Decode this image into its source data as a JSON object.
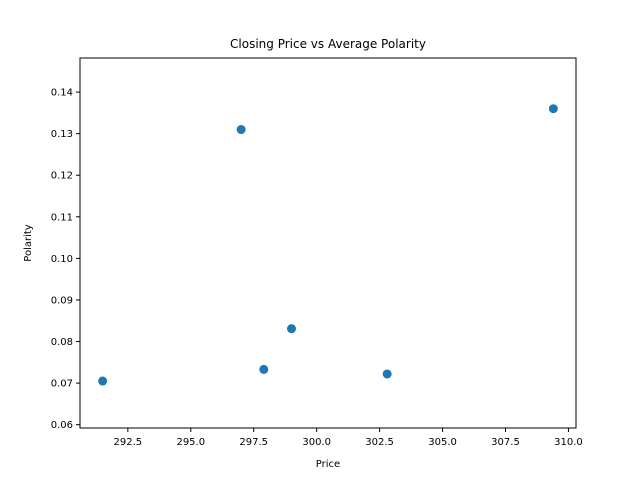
{
  "chart_data": {
    "type": "scatter",
    "title": "Closing Price vs Average Polarity",
    "xlabel": "Price",
    "ylabel": "Polarity",
    "xlim": [
      290.6,
      310.3
    ],
    "ylim": [
      0.0592,
      0.1482
    ],
    "x_ticks": [
      292.5,
      295.0,
      297.5,
      300.0,
      302.5,
      305.0,
      307.5,
      310.0
    ],
    "x_tick_labels": [
      "292.5",
      "295.0",
      "297.5",
      "300.0",
      "302.5",
      "305.0",
      "307.5",
      "310.0"
    ],
    "y_ticks": [
      0.06,
      0.07,
      0.08,
      0.09,
      0.1,
      0.11,
      0.12,
      0.13,
      0.14
    ],
    "y_tick_labels": [
      "0.06",
      "0.07",
      "0.08",
      "0.09",
      "0.10",
      "0.11",
      "0.12",
      "0.13",
      "0.14"
    ],
    "grid": false,
    "points": [
      {
        "x": 291.5,
        "y": 0.0705
      },
      {
        "x": 297.0,
        "y": 0.131
      },
      {
        "x": 297.9,
        "y": 0.0733
      },
      {
        "x": 299.0,
        "y": 0.0831
      },
      {
        "x": 302.8,
        "y": 0.0722
      },
      {
        "x": 309.4,
        "y": 0.136
      }
    ],
    "marker_color": "#1f77b4"
  }
}
